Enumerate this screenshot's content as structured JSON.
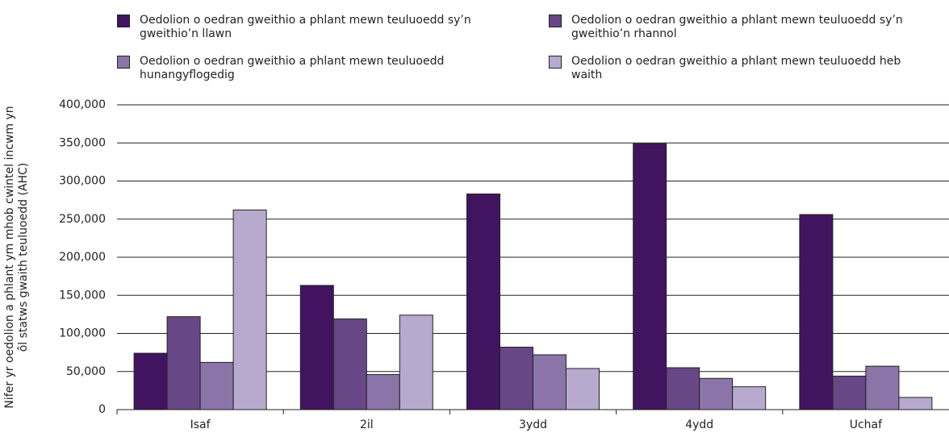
{
  "chart_data": {
    "type": "bar",
    "y_label": "Nifer yr oedolion a phlant ym mhob cwintel incwm yn ôl statws gwaith teuluoedd (AHC)",
    "categories": [
      "Isaf",
      "2il",
      "3ydd",
      "4ydd",
      "Uchaf"
    ],
    "series": [
      {
        "name": "Oedolion o oedran gweithio a phlant mewn teuluoedd sy’n gweithio’n llawn",
        "color": "#42145f",
        "values": [
          74000,
          163000,
          283000,
          349000,
          256000
        ]
      },
      {
        "name": "Oedolion o oedran gweithio a phlant mewn teuluoedd sy’n gweithio’n rhannol",
        "color": "#674786",
        "values": [
          122000,
          119000,
          82000,
          55000,
          44000
        ]
      },
      {
        "name": "Oedolion o oedran gweithio a phlant mewn teuluoedd hunangyflogedig",
        "color": "#8b74a8",
        "values": [
          62000,
          46000,
          72000,
          41000,
          57000
        ]
      },
      {
        "name": "Oedolion o oedran gweithio a phlant mewn teuluoedd heb waith",
        "color": "#b8a9cf",
        "values": [
          262000,
          124000,
          54000,
          30000,
          16000
        ]
      }
    ],
    "ylim": [
      0,
      400000
    ],
    "yticks": [
      0,
      {
        "value": 50000,
        "label": "50,000"
      },
      {
        "value": 100000,
        "label": "100,000"
      },
      {
        "value": 150000,
        "label": "150,000"
      },
      {
        "value": 200000,
        "label": "200,000"
      },
      {
        "value": 250000,
        "label": "250,000"
      },
      {
        "value": 300000,
        "label": "300,000"
      },
      {
        "value": 350000,
        "label": "350,000"
      },
      {
        "value": 400000,
        "label": "400,000"
      }
    ],
    "grid": true
  }
}
